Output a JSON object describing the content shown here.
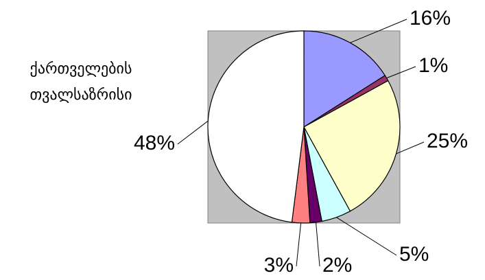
{
  "chart_data": {
    "type": "pie",
    "title": "ქართველების თვალსაზრისი",
    "values": [
      16,
      1,
      25,
      5,
      2,
      3,
      48
    ],
    "value_labels": [
      "16%",
      "1%",
      "25%",
      "5%",
      "2%",
      "3%",
      "48%"
    ],
    "colors": [
      "#9999ff",
      "#993366",
      "#ffffcc",
      "#ccffff",
      "#660066",
      "#ff8080",
      "#ffffff"
    ],
    "background": "#c0c0c0"
  }
}
